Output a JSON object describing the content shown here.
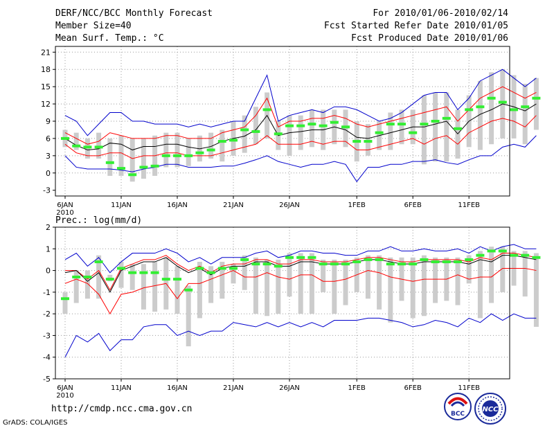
{
  "header": {
    "title": "DERF/NCC/BCC Monthly Forecast",
    "member_size": "Member Size=40",
    "variable1": "Mean Surf. Temp.: °C",
    "period": "For 2010/01/06-2010/02/14",
    "fcst_started": "Fcst Started Refer Date 2010/01/05",
    "fcst_produced": "Fcst Produced Date 2010/01/06"
  },
  "footer": {
    "url": "http://cmdp.ncc.cma.gov.cn",
    "credit": "GrADS: COLA/IGES",
    "logo1": "BCC",
    "logo2": "NCC"
  },
  "colors": {
    "mean": "#000000",
    "spread": "#ff0000",
    "extreme": "#0000cc",
    "observed": "#33ee33",
    "box": "#cccccc"
  },
  "chart_data": [
    {
      "type": "line",
      "title": "Mean Surf. Temp.: °C",
      "xlabel": "",
      "ylabel": "°C",
      "ylim": [
        -4,
        22
      ],
      "yticks": [
        -3,
        0,
        3,
        6,
        9,
        12,
        15,
        18,
        21
      ],
      "xticks": [
        {
          "label": "6JAN",
          "sub": "2010",
          "day": 0
        },
        {
          "label": "11JAN",
          "day": 5
        },
        {
          "label": "16JAN",
          "day": 10
        },
        {
          "label": "21JAN",
          "day": 15
        },
        {
          "label": "26JAN",
          "day": 20
        },
        {
          "label": "1FEB",
          "day": 26
        },
        {
          "label": "6FEB",
          "day": 31
        },
        {
          "label": "11FEB",
          "day": 36
        }
      ],
      "grid": true,
      "series": [
        {
          "name": "ensemble max",
          "values": [
            10,
            9,
            6.5,
            8.5,
            10.5,
            10.5,
            9,
            9,
            8.5,
            8.5,
            8.5,
            8,
            8.5,
            8,
            8.5,
            9,
            9,
            13,
            17,
            9,
            10,
            10.5,
            11,
            10.5,
            11.5,
            11.5,
            11,
            10,
            9,
            9.5,
            10.5,
            12,
            13.5,
            14,
            14,
            11,
            13,
            16,
            17,
            18,
            16.5,
            15,
            16.5
          ]
        },
        {
          "name": "mean+sd",
          "values": [
            7,
            6,
            5,
            5.5,
            7,
            6.5,
            6,
            6,
            6,
            6.5,
            6.5,
            6,
            6,
            6,
            7,
            7.5,
            8,
            10,
            13,
            8,
            9,
            9,
            9.5,
            9.5,
            10,
            9.5,
            8.5,
            8,
            8.5,
            9,
            9.5,
            10,
            10.5,
            11,
            11.5,
            9,
            11,
            13,
            14,
            15,
            14,
            13,
            14
          ]
        },
        {
          "name": "ensemble mean",
          "values": [
            6,
            4.8,
            4,
            4.2,
            5.2,
            5,
            4,
            4.6,
            4.6,
            5,
            5,
            4.5,
            4.2,
            4.6,
            5.5,
            6,
            6.4,
            7.5,
            10,
            6.5,
            7,
            7.2,
            7.5,
            7.5,
            8,
            7.5,
            6.2,
            6,
            6.5,
            7,
            7.5,
            8,
            8,
            8.5,
            9,
            6.8,
            9,
            10.2,
            11,
            12,
            11.5,
            10.8,
            12
          ]
        },
        {
          "name": "mean-sd",
          "values": [
            5,
            3.5,
            3,
            3,
            3.5,
            3.5,
            2.5,
            3,
            3,
            3.5,
            3.5,
            3,
            3,
            3,
            3.5,
            4,
            4.5,
            5,
            6.5,
            5,
            5,
            5,
            5.5,
            5,
            5.5,
            5.5,
            4,
            4,
            4.5,
            5,
            5.5,
            6,
            5,
            6,
            6.5,
            5,
            7,
            8,
            9,
            9.5,
            9,
            8,
            10
          ]
        },
        {
          "name": "ensemble min",
          "values": [
            3,
            1,
            0.7,
            0.7,
            0.7,
            0.5,
            0.2,
            0.7,
            1,
            1.5,
            1.5,
            1,
            1,
            1,
            1.2,
            1.2,
            1.7,
            2.3,
            3,
            2,
            1.5,
            1,
            1.5,
            1.5,
            2,
            1.5,
            -1.5,
            1,
            1,
            1.5,
            1.5,
            2,
            2,
            2.3,
            1.8,
            1.5,
            2.3,
            3,
            3,
            4.5,
            5,
            4.5,
            6.5
          ]
        }
      ],
      "observed": [
        6,
        4.7,
        4.5,
        4.5,
        1.8,
        0.8,
        -0.3,
        1,
        1.2,
        3,
        3,
        3,
        3.5,
        4,
        5.5,
        5.7,
        7.5,
        7.2,
        11,
        6.8,
        8.2,
        8.2,
        8.5,
        8.2,
        8.8,
        8,
        5.5,
        5.5,
        7,
        8.5,
        8.5,
        7,
        8.5,
        9,
        9.5,
        7.7,
        11,
        11.5,
        13,
        12.3,
        11,
        11.5,
        13
      ],
      "box_low": [
        4.5,
        4,
        2.5,
        2.5,
        -0.5,
        -0.5,
        -1.5,
        -1,
        -0.5,
        1,
        1,
        1.2,
        2,
        2.5,
        2,
        3,
        3.5,
        5,
        6,
        4,
        3,
        4,
        4.5,
        4,
        5,
        4.5,
        2,
        3,
        4,
        4,
        5,
        5,
        1.5,
        2,
        2,
        2.5,
        4.5,
        4,
        5,
        6,
        6,
        5,
        7.5
      ],
      "box_high": [
        7.5,
        7,
        6,
        7,
        6,
        6.5,
        6,
        6,
        6.5,
        7,
        7,
        6,
        6.5,
        7,
        7.5,
        9,
        10,
        11.5,
        14,
        9,
        10,
        10,
        11,
        11,
        11,
        11,
        9,
        8.5,
        9,
        10.5,
        11,
        11,
        13.5,
        14,
        14,
        11,
        13.5,
        16,
        17.5,
        18,
        17,
        15.5,
        16.5
      ]
    },
    {
      "type": "line",
      "title": "Prec.: log(mm/d)",
      "xlabel": "",
      "ylabel": "log(mm/d)",
      "ylim": [
        -5,
        2
      ],
      "yticks": [
        -5,
        -4,
        -3,
        -2,
        -1,
        0,
        1,
        2
      ],
      "xticks": [
        {
          "label": "6JAN",
          "sub": "2010",
          "day": 0
        },
        {
          "label": "11JAN",
          "day": 5
        },
        {
          "label": "16JAN",
          "day": 10
        },
        {
          "label": "21JAN",
          "day": 15
        },
        {
          "label": "26JAN",
          "day": 20
        },
        {
          "label": "1FEB",
          "day": 26
        },
        {
          "label": "6FEB",
          "day": 31
        },
        {
          "label": "11FEB",
          "day": 36
        }
      ],
      "grid": true,
      "series": [
        {
          "name": "ensemble max",
          "values": [
            0.5,
            0.8,
            0.2,
            0.6,
            -0.1,
            0.4,
            0.8,
            0.8,
            0.8,
            1,
            0.8,
            0.4,
            0.6,
            0.3,
            0.6,
            0.6,
            0.6,
            0.8,
            0.9,
            0.6,
            0.7,
            0.9,
            0.9,
            0.8,
            0.8,
            0.7,
            0.7,
            0.9,
            0.9,
            1.1,
            0.9,
            0.9,
            1,
            0.9,
            0.9,
            1,
            0.8,
            1.1,
            0.9,
            1.1,
            1.2,
            1,
            1
          ]
        },
        {
          "name": "mean+sd",
          "values": [
            0,
            0,
            -0.4,
            0,
            -0.9,
            0.1,
            0.3,
            0.5,
            0.5,
            0.7,
            0.3,
            0,
            0.2,
            -0.1,
            0.2,
            0.3,
            0.3,
            0.5,
            0.5,
            0.3,
            0.3,
            0.5,
            0.5,
            0.4,
            0.4,
            0.4,
            0.5,
            0.6,
            0.6,
            0.5,
            0.4,
            0.4,
            0.5,
            0.5,
            0.5,
            0.5,
            0.4,
            0.6,
            0.5,
            0.8,
            0.8,
            0.7,
            0.6
          ]
        },
        {
          "name": "ensemble mean",
          "values": [
            -0.1,
            0,
            -0.5,
            -0.1,
            -1,
            0,
            0.2,
            0.4,
            0.4,
            0.6,
            0.2,
            -0.1,
            0.1,
            -0.2,
            0.1,
            0.2,
            0.2,
            0.4,
            0.4,
            0.2,
            0.2,
            0.4,
            0.4,
            0.3,
            0.3,
            0.3,
            0.4,
            0.5,
            0.5,
            0.4,
            0.3,
            0.3,
            0.4,
            0.4,
            0.4,
            0.4,
            0.3,
            0.5,
            0.4,
            0.7,
            0.7,
            0.6,
            0.5
          ]
        },
        {
          "name": "mean-sd",
          "values": [
            -0.6,
            -0.4,
            -0.6,
            -1.1,
            -2,
            -1.1,
            -1,
            -0.8,
            -0.7,
            -0.6,
            -1.3,
            -0.6,
            -0.6,
            -0.4,
            -0.2,
            0,
            -0.3,
            -0.3,
            -0.1,
            -0.3,
            -0.4,
            -0.2,
            -0.2,
            -0.5,
            -0.5,
            -0.4,
            -0.2,
            0,
            -0.1,
            -0.3,
            -0.4,
            -0.5,
            -0.4,
            -0.4,
            -0.4,
            -0.2,
            -0.4,
            -0.3,
            -0.3,
            0.1,
            0.1,
            0.1,
            0
          ]
        },
        {
          "name": "ensemble min",
          "values": [
            -4,
            -3,
            -3.3,
            -2.9,
            -3.7,
            -3.2,
            -3.2,
            -2.6,
            -2.5,
            -2.5,
            -3,
            -2.8,
            -3,
            -2.8,
            -2.8,
            -2.4,
            -2.5,
            -2.6,
            -2.4,
            -2.6,
            -2.4,
            -2.6,
            -2.4,
            -2.6,
            -2.3,
            -2.3,
            -2.3,
            -2.2,
            -2.2,
            -2.3,
            -2.4,
            -2.6,
            -2.5,
            -2.3,
            -2.4,
            -2.6,
            -2.2,
            -2.4,
            -2,
            -2.3,
            -2,
            -2.2,
            -2.2
          ]
        }
      ],
      "observed": [
        -1.3,
        -0.3,
        -0.3,
        0.4,
        -0.4,
        0.1,
        -0.1,
        -0.1,
        -0.1,
        -0.4,
        -0.4,
        -0.9,
        0.1,
        -0.1,
        0.1,
        0.1,
        0.5,
        0.3,
        0.3,
        0.2,
        0.6,
        0.6,
        0.6,
        0.3,
        0.3,
        0.3,
        0.4,
        0.5,
        0.5,
        0.3,
        0.3,
        0.3,
        0.5,
        0.4,
        0.4,
        0.4,
        0.5,
        0.7,
        0.9,
        0.9,
        0.7,
        0.7,
        0.6
      ],
      "box_low": [
        -2,
        -1.5,
        -1.3,
        -1.3,
        -0.5,
        -0.8,
        -0.9,
        -1.8,
        -1.9,
        -1.8,
        -2,
        -3.5,
        -2.2,
        -1.5,
        -1.3,
        -0.6,
        -0.9,
        -2,
        -2.1,
        -2,
        -1.2,
        -2,
        -2,
        -1,
        -2,
        -1.6,
        -1,
        -1.3,
        -1.8,
        -2.4,
        -1.4,
        -2.2,
        -2.1,
        -1.5,
        -1.4,
        -1.6,
        -0.6,
        -2.2,
        -1.5,
        -1,
        -0.7,
        -1.2,
        -2.6
      ],
      "box_high": [
        -1,
        0,
        0,
        0.7,
        -0.2,
        0.4,
        0.3,
        0.3,
        0.4,
        0.6,
        0.2,
        -0.7,
        0.4,
        0.2,
        0.4,
        0.3,
        0.7,
        0.6,
        0.5,
        0.5,
        0.8,
        0.8,
        0.8,
        0.5,
        0.5,
        0.5,
        0.6,
        0.7,
        0.7,
        0.6,
        0.6,
        0.6,
        0.7,
        0.6,
        0.6,
        0.6,
        0.7,
        0.9,
        1.1,
        1.1,
        0.9,
        0.9,
        0.8
      ]
    }
  ]
}
